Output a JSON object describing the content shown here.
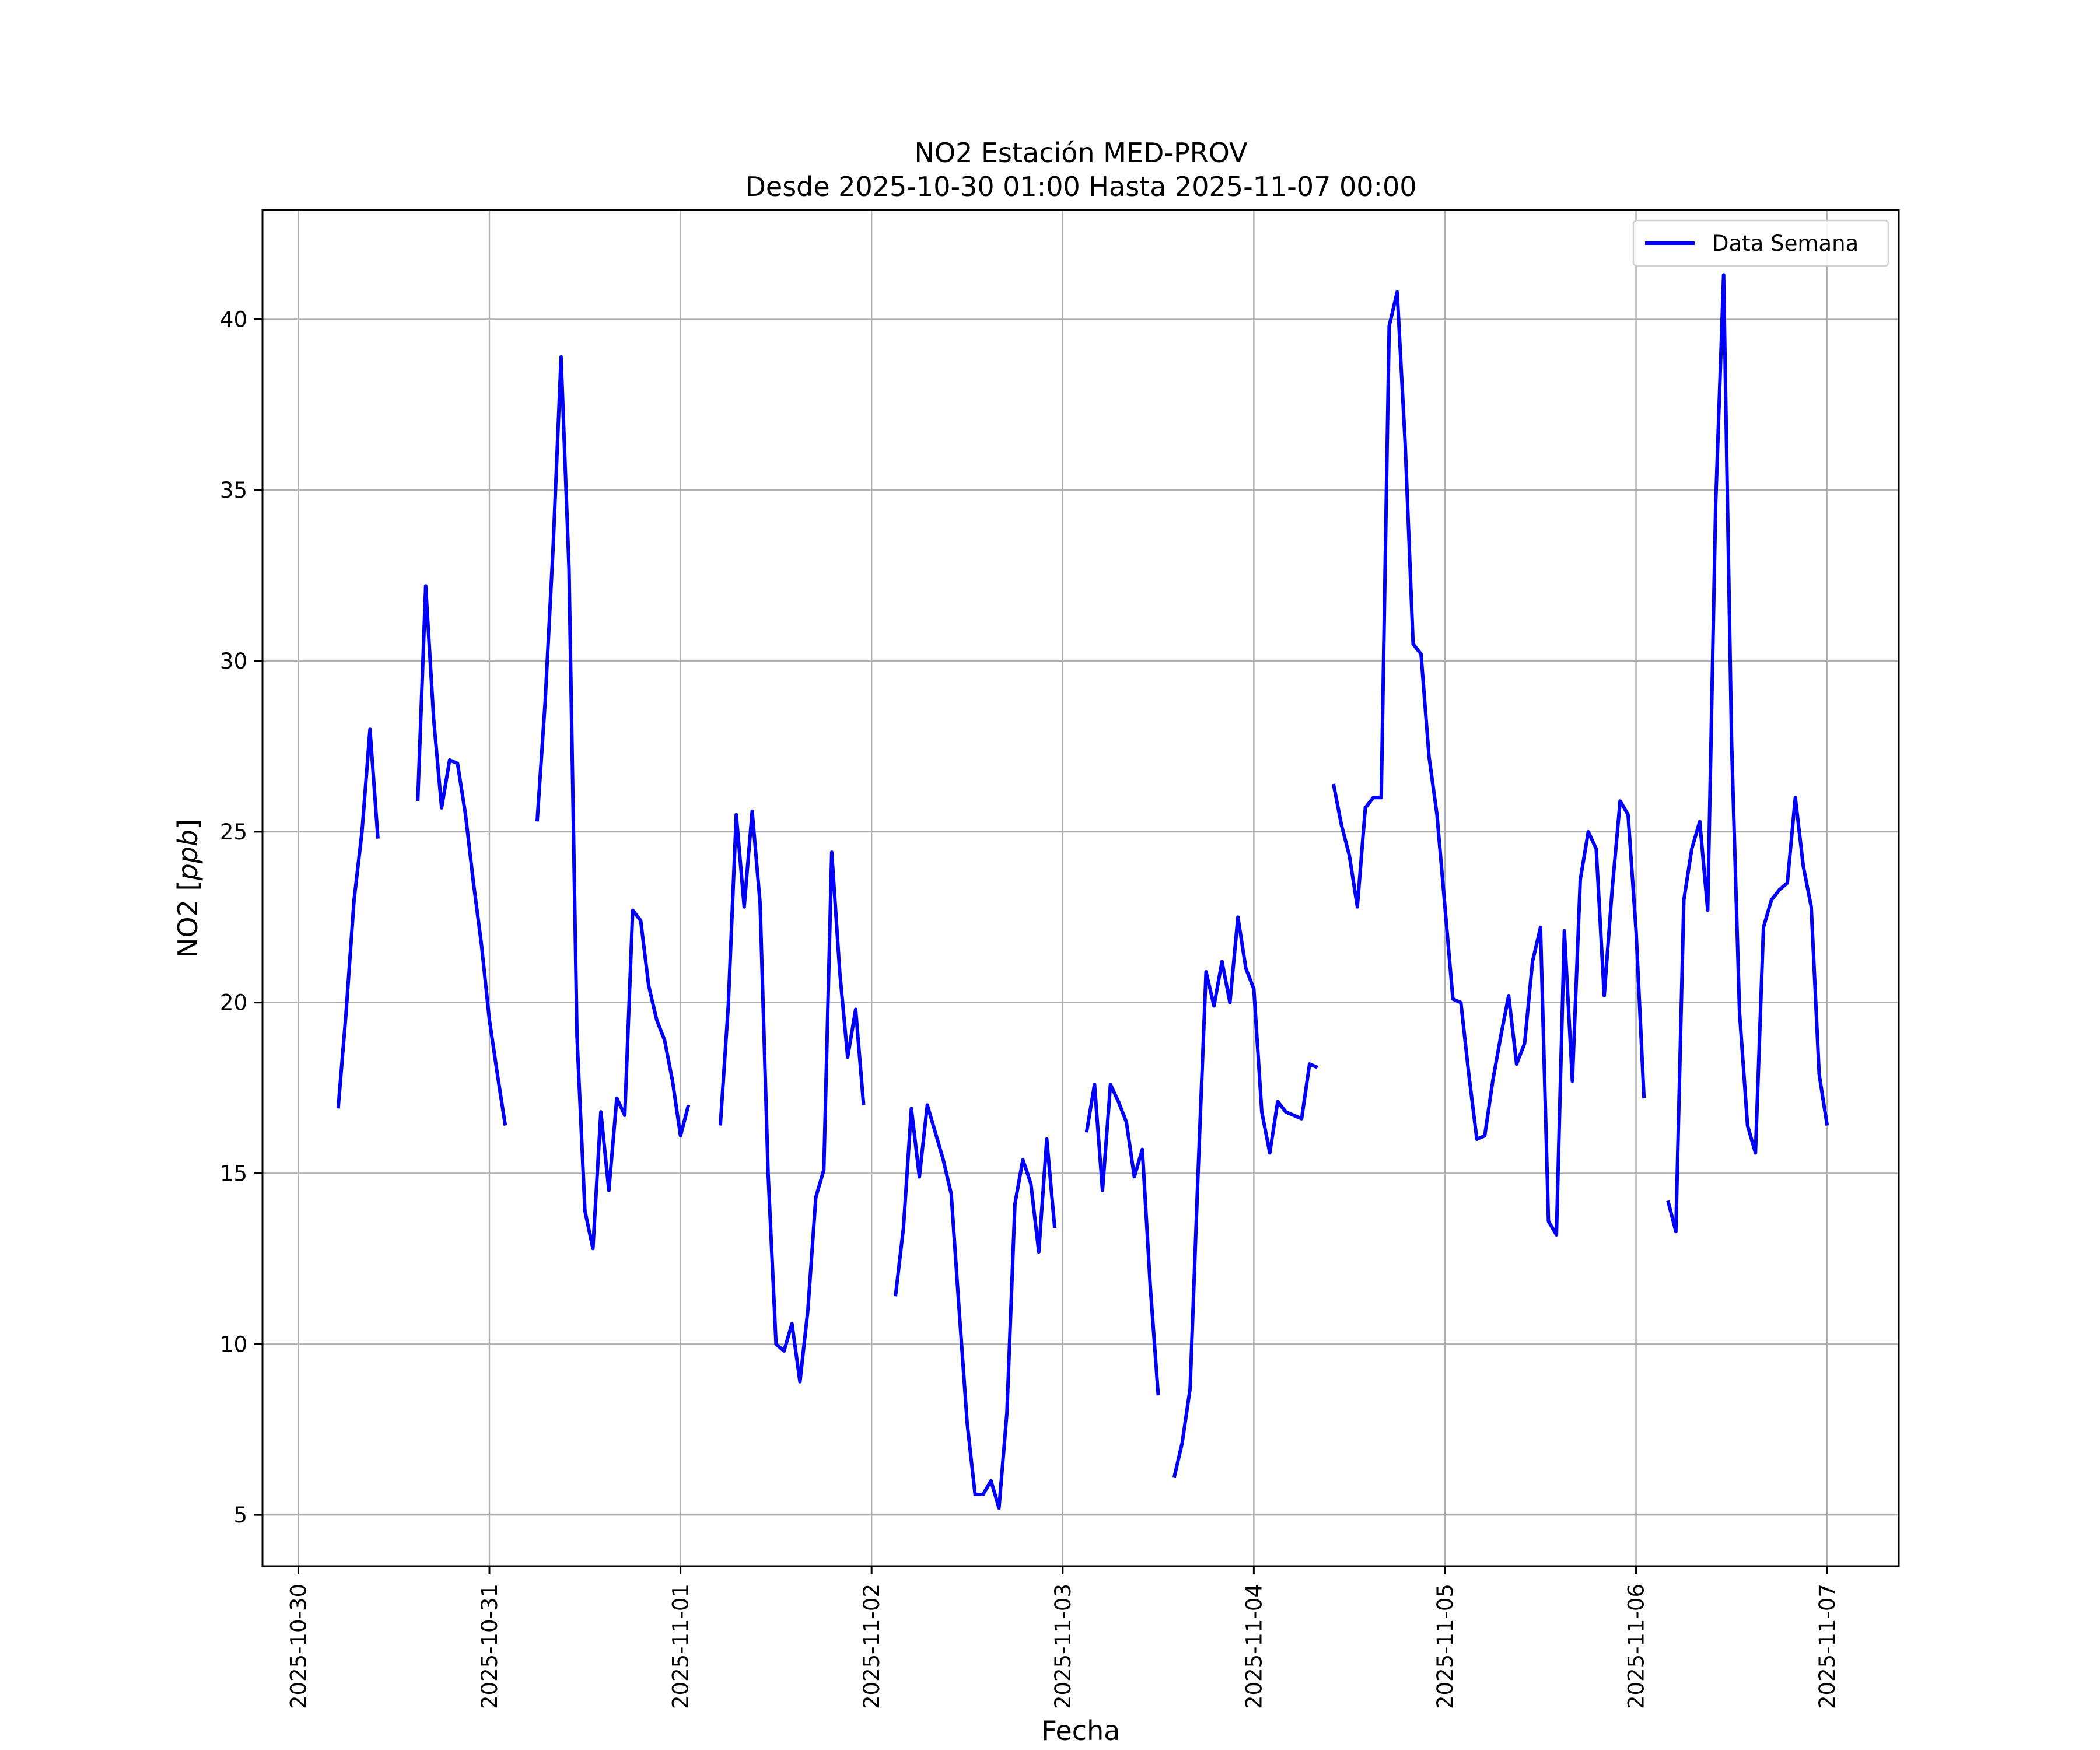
{
  "chart_data": {
    "type": "line",
    "title": "NO2 Estación MED-PROV",
    "subtitle": "Desde 2025-10-30 01:00 Hasta 2025-11-07 00:00",
    "xlabel": "Fecha",
    "ylabel_main": "NO2",
    "ylabel_unit": "ppb",
    "x_ticks": [
      "2025-10-30",
      "2025-10-31",
      "2025-11-01",
      "2025-11-02",
      "2025-11-03",
      "2025-11-04",
      "2025-11-05",
      "2025-11-06",
      "2025-11-07"
    ],
    "y_ticks": [
      5,
      10,
      15,
      20,
      25,
      30,
      35,
      40
    ],
    "xlim": [
      "2025-10-29 19:30",
      "2025-11-07 09:00"
    ],
    "ylim": [
      3.5,
      43.2
    ],
    "grid": true,
    "legend_position": "top-right",
    "series": [
      {
        "name": "Data Semana",
        "color": "#0000ff",
        "segments": [
          [
            [
              "2025-10-30 05:00",
              16.9
            ],
            [
              "2025-10-30 06:00",
              19.7
            ],
            [
              "2025-10-30 07:00",
              23.0
            ],
            [
              "2025-10-30 08:00",
              25.0
            ],
            [
              "2025-10-30 09:00",
              28.0
            ],
            [
              "2025-10-30 10:00",
              24.8
            ]
          ],
          [
            [
              "2025-10-30 15:00",
              25.9
            ],
            [
              "2025-10-30 16:00",
              32.2
            ],
            [
              "2025-10-30 17:00",
              28.3
            ],
            [
              "2025-10-30 18:00",
              25.7
            ],
            [
              "2025-10-30 19:00",
              27.1
            ],
            [
              "2025-10-30 20:00",
              27.0
            ],
            [
              "2025-10-30 21:00",
              25.5
            ],
            [
              "2025-10-30 22:00",
              23.5
            ],
            [
              "2025-10-30 23:00",
              21.7
            ],
            [
              "2025-10-31 00:00",
              19.5
            ],
            [
              "2025-10-31 01:00",
              17.9
            ],
            [
              "2025-10-31 02:00",
              16.4
            ]
          ],
          [
            [
              "2025-10-31 06:00",
              25.3
            ],
            [
              "2025-10-31 07:00",
              28.8
            ],
            [
              "2025-10-31 08:00",
              33.3
            ],
            [
              "2025-10-31 09:00",
              38.9
            ],
            [
              "2025-10-31 10:00",
              32.7
            ],
            [
              "2025-10-31 11:00",
              19.0
            ],
            [
              "2025-10-31 12:00",
              13.9
            ],
            [
              "2025-10-31 13:00",
              12.8
            ],
            [
              "2025-10-31 14:00",
              16.8
            ],
            [
              "2025-10-31 15:00",
              14.5
            ],
            [
              "2025-10-31 16:00",
              17.2
            ],
            [
              "2025-10-31 17:00",
              16.7
            ],
            [
              "2025-10-31 18:00",
              22.7
            ],
            [
              "2025-10-31 19:00",
              22.4
            ],
            [
              "2025-10-31 20:00",
              20.5
            ],
            [
              "2025-10-31 21:00",
              19.5
            ],
            [
              "2025-10-31 22:00",
              18.9
            ],
            [
              "2025-10-31 23:00",
              17.7
            ],
            [
              "2025-11-01 00:00",
              16.1
            ],
            [
              "2025-11-01 01:00",
              17.0
            ]
          ],
          [
            [
              "2025-11-01 05:00",
              16.4
            ],
            [
              "2025-11-01 06:00",
              19.9
            ],
            [
              "2025-11-01 07:00",
              25.5
            ],
            [
              "2025-11-01 08:00",
              22.8
            ],
            [
              "2025-11-01 09:00",
              25.6
            ],
            [
              "2025-11-01 10:00",
              22.9
            ],
            [
              "2025-11-01 11:00",
              15.0
            ],
            [
              "2025-11-01 12:00",
              10.0
            ],
            [
              "2025-11-01 13:00",
              9.8
            ],
            [
              "2025-11-01 14:00",
              10.6
            ],
            [
              "2025-11-01 15:00",
              8.9
            ],
            [
              "2025-11-01 16:00",
              11.0
            ],
            [
              "2025-11-01 17:00",
              14.3
            ],
            [
              "2025-11-01 18:00",
              15.1
            ],
            [
              "2025-11-01 19:00",
              24.4
            ],
            [
              "2025-11-01 20:00",
              20.9
            ],
            [
              "2025-11-01 21:00",
              18.4
            ],
            [
              "2025-11-01 22:00",
              19.8
            ],
            [
              "2025-11-01 23:00",
              17.0
            ]
          ],
          [
            [
              "2025-11-02 03:00",
              11.4
            ],
            [
              "2025-11-02 04:00",
              13.4
            ],
            [
              "2025-11-02 05:00",
              16.9
            ],
            [
              "2025-11-02 06:00",
              14.9
            ],
            [
              "2025-11-02 07:00",
              17.0
            ],
            [
              "2025-11-02 08:00",
              16.2
            ],
            [
              "2025-11-02 09:00",
              15.4
            ],
            [
              "2025-11-02 10:00",
              14.4
            ],
            [
              "2025-11-02 11:00",
              11.0
            ],
            [
              "2025-11-02 12:00",
              7.7
            ],
            [
              "2025-11-02 13:00",
              5.6
            ],
            [
              "2025-11-02 14:00",
              5.6
            ],
            [
              "2025-11-02 15:00",
              6.0
            ],
            [
              "2025-11-02 16:00",
              5.2
            ],
            [
              "2025-11-02 17:00",
              8.0
            ],
            [
              "2025-11-02 18:00",
              14.1
            ],
            [
              "2025-11-02 19:00",
              15.4
            ],
            [
              "2025-11-02 20:00",
              14.7
            ],
            [
              "2025-11-02 21:00",
              12.7
            ],
            [
              "2025-11-02 22:00",
              16.0
            ],
            [
              "2025-11-02 23:00",
              13.4
            ]
          ],
          [
            [
              "2025-11-03 03:00",
              16.2
            ],
            [
              "2025-11-03 04:00",
              17.6
            ],
            [
              "2025-11-03 05:00",
              14.5
            ],
            [
              "2025-11-03 06:00",
              17.6
            ],
            [
              "2025-11-03 07:00",
              17.1
            ],
            [
              "2025-11-03 08:00",
              16.5
            ],
            [
              "2025-11-03 09:00",
              14.9
            ],
            [
              "2025-11-03 10:00",
              15.7
            ],
            [
              "2025-11-03 11:00",
              11.7
            ],
            [
              "2025-11-03 12:00",
              8.5
            ]
          ],
          [
            [
              "2025-11-03 14:00",
              6.1
            ],
            [
              "2025-11-03 15:00",
              7.1
            ],
            [
              "2025-11-03 16:00",
              8.7
            ],
            [
              "2025-11-03 17:00",
              15.0
            ],
            [
              "2025-11-03 18:00",
              20.9
            ],
            [
              "2025-11-03 19:00",
              19.9
            ],
            [
              "2025-11-03 20:00",
              21.2
            ],
            [
              "2025-11-03 21:00",
              20.0
            ],
            [
              "2025-11-03 22:00",
              22.5
            ],
            [
              "2025-11-03 23:00",
              21.0
            ],
            [
              "2025-11-04 00:00",
              20.4
            ],
            [
              "2025-11-04 01:00",
              16.8
            ],
            [
              "2025-11-04 02:00",
              15.6
            ],
            [
              "2025-11-04 03:00",
              17.1
            ],
            [
              "2025-11-04 04:00",
              16.8
            ],
            [
              "2025-11-04 05:00",
              16.7
            ],
            [
              "2025-11-04 06:00",
              16.6
            ],
            [
              "2025-11-04 07:00",
              18.2
            ],
            [
              "2025-11-04 08:00",
              18.1
            ]
          ],
          [
            [
              "2025-11-04 10:00",
              26.4
            ],
            [
              "2025-11-04 11:00",
              25.2
            ],
            [
              "2025-11-04 12:00",
              24.3
            ],
            [
              "2025-11-04 13:00",
              22.8
            ],
            [
              "2025-11-04 14:00",
              25.7
            ],
            [
              "2025-11-04 15:00",
              26.0
            ],
            [
              "2025-11-04 16:00",
              26.0
            ],
            [
              "2025-11-04 17:00",
              39.8
            ],
            [
              "2025-11-04 18:00",
              40.8
            ],
            [
              "2025-11-04 19:00",
              36.4
            ],
            [
              "2025-11-04 20:00",
              30.5
            ],
            [
              "2025-11-04 21:00",
              30.2
            ],
            [
              "2025-11-04 22:00",
              27.2
            ],
            [
              "2025-11-04 23:00",
              25.5
            ],
            [
              "2025-11-05 00:00",
              22.8
            ],
            [
              "2025-11-05 01:00",
              20.1
            ],
            [
              "2025-11-05 02:00",
              20.0
            ],
            [
              "2025-11-05 03:00",
              17.9
            ],
            [
              "2025-11-05 04:00",
              16.0
            ],
            [
              "2025-11-05 05:00",
              16.1
            ],
            [
              "2025-11-05 06:00",
              17.7
            ],
            [
              "2025-11-05 07:00",
              19.0
            ],
            [
              "2025-11-05 08:00",
              20.2
            ],
            [
              "2025-11-05 09:00",
              18.2
            ],
            [
              "2025-11-05 10:00",
              18.8
            ],
            [
              "2025-11-05 11:00",
              21.2
            ],
            [
              "2025-11-05 12:00",
              22.2
            ],
            [
              "2025-11-05 13:00",
              13.6
            ],
            [
              "2025-11-05 14:00",
              13.2
            ],
            [
              "2025-11-05 15:00",
              22.1
            ],
            [
              "2025-11-05 16:00",
              17.7
            ],
            [
              "2025-11-05 17:00",
              23.6
            ],
            [
              "2025-11-05 18:00",
              25.0
            ],
            [
              "2025-11-05 19:00",
              24.5
            ],
            [
              "2025-11-05 20:00",
              20.2
            ],
            [
              "2025-11-05 21:00",
              23.3
            ],
            [
              "2025-11-05 22:00",
              25.9
            ],
            [
              "2025-11-05 23:00",
              25.5
            ],
            [
              "2025-11-06 00:00",
              22.1
            ],
            [
              "2025-11-06 01:00",
              17.2
            ]
          ],
          [
            [
              "2025-11-06 04:00",
              14.2
            ],
            [
              "2025-11-06 05:00",
              13.3
            ],
            [
              "2025-11-06 06:00",
              23.0
            ],
            [
              "2025-11-06 07:00",
              24.5
            ],
            [
              "2025-11-06 08:00",
              25.3
            ],
            [
              "2025-11-06 09:00",
              22.7
            ],
            [
              "2025-11-06 10:00",
              34.6
            ],
            [
              "2025-11-06 11:00",
              41.3
            ],
            [
              "2025-11-06 12:00",
              27.6
            ],
            [
              "2025-11-06 13:00",
              19.7
            ],
            [
              "2025-11-06 14:00",
              16.4
            ],
            [
              "2025-11-06 15:00",
              15.6
            ],
            [
              "2025-11-06 16:00",
              22.2
            ],
            [
              "2025-11-06 17:00",
              23.0
            ],
            [
              "2025-11-06 18:00",
              23.3
            ],
            [
              "2025-11-06 19:00",
              23.5
            ],
            [
              "2025-11-06 20:00",
              26.0
            ],
            [
              "2025-11-06 21:00",
              24.0
            ],
            [
              "2025-11-06 22:00",
              22.8
            ],
            [
              "2025-11-06 23:00",
              17.9
            ],
            [
              "2025-11-07 00:00",
              16.4
            ]
          ]
        ]
      }
    ]
  }
}
